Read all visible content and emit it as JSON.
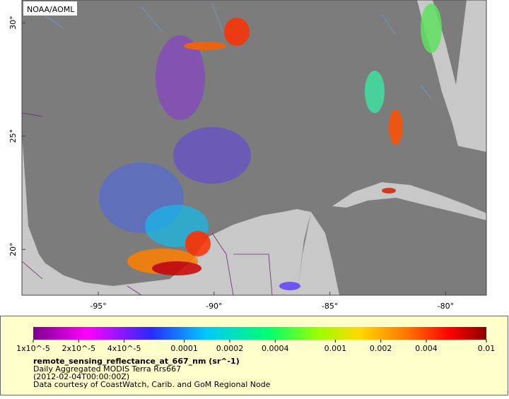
{
  "map": {
    "credit": "NOAA/AOML",
    "xlim": [
      -98.3,
      -78.24
    ],
    "ylim": [
      17.98,
      31.0
    ],
    "xticks": [
      {
        "value": -95,
        "label": "-95°"
      },
      {
        "value": -90,
        "label": "-90°"
      },
      {
        "value": -85,
        "label": "-85°"
      },
      {
        "value": -80,
        "label": "-80°"
      }
    ],
    "yticks": [
      {
        "value": 20,
        "label": "20°"
      },
      {
        "value": 25,
        "label": "25°"
      },
      {
        "value": 30,
        "label": "30°"
      }
    ]
  },
  "legend": {
    "scale": "log",
    "ticks": [
      {
        "value": 1e-05,
        "label": "1x10^-5"
      },
      {
        "value": 2e-05,
        "label": "2x10^-5"
      },
      {
        "value": 4e-05,
        "label": "4x10^-5"
      },
      0.0001,
      0.0002,
      0.0004,
      0.001,
      0.002,
      0.004,
      0.01
    ],
    "title": "remote_sensing_reflectance_at_667_nm (sr^-1)",
    "lines": [
      "Daily Aggregated MODIS Terra Rrs667",
      "(2012-02-04T00:00:00Z)",
      "Data courtesy of CoastWatch, Carib. and GoM Regional Node"
    ]
  }
}
